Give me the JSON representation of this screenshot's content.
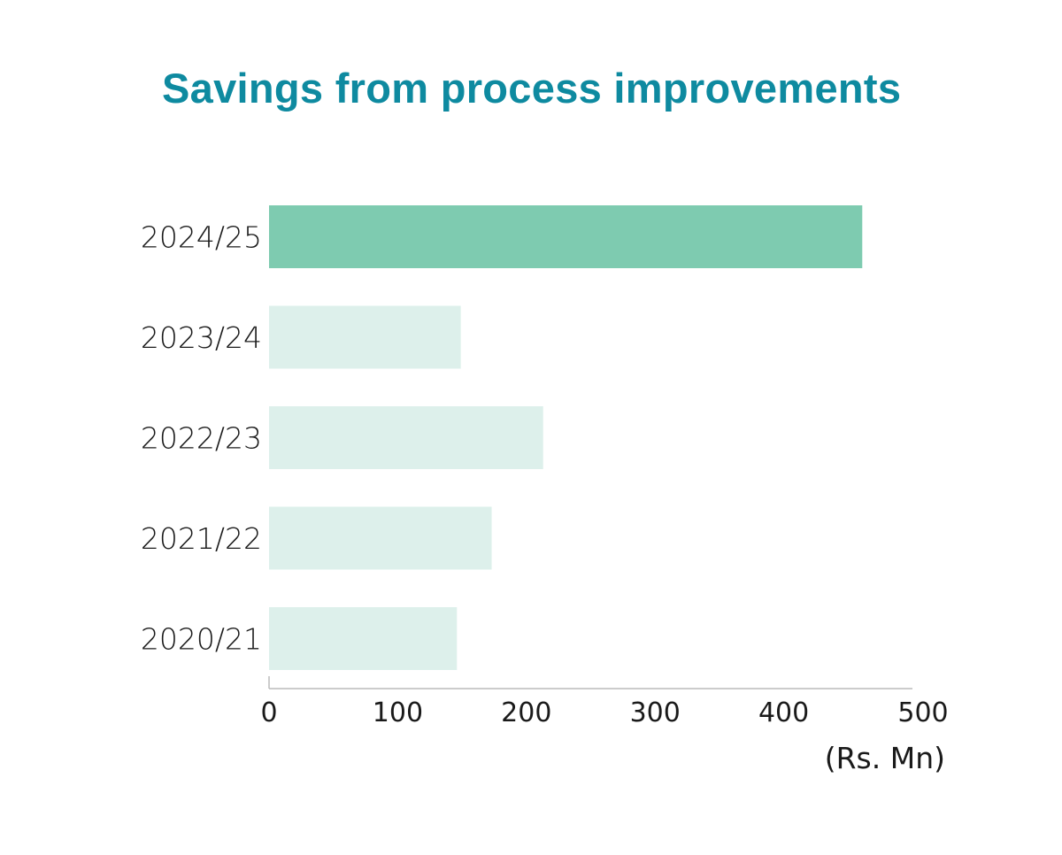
{
  "chart_data": {
    "type": "bar",
    "orientation": "horizontal",
    "title": "Savings from process improvements",
    "categories": [
      "2024/25",
      "2023/24",
      "2022/23",
      "2021/22",
      "2020/21"
    ],
    "values": [
      461,
      149,
      213,
      173,
      146
    ],
    "xlim": [
      0,
      500
    ],
    "xticks": [
      "0",
      "100",
      "200",
      "300",
      "400",
      "500"
    ],
    "xlabel": "(Rs. Mn)",
    "ylabel": "",
    "grid": false,
    "legend": "none",
    "colors": {
      "highlight": "#7ecbb0",
      "base": "#ddf0eb",
      "title": "#0e8aa0",
      "axis": "#bbbbbb"
    },
    "highlight_index": 0
  }
}
